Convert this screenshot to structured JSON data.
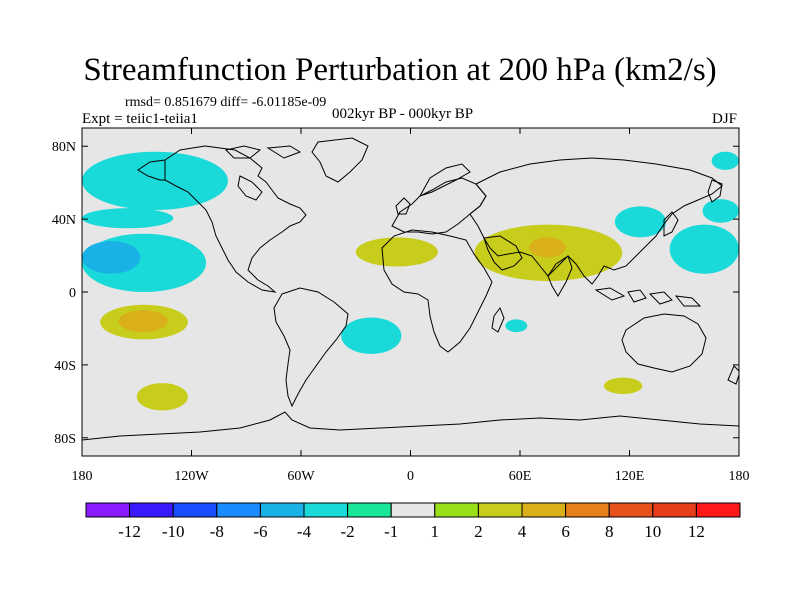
{
  "header": {
    "title": "Streamfunction Perturbation at 200 hPa (km2/s)",
    "stats": "rmsd= 0.851679 diff= -6.01185e-09",
    "experiment": "Expt = teiic1-teiia1",
    "period": "002kyr BP - 000kyr BP",
    "season": "DJF"
  },
  "map": {
    "lon_range": [
      -180,
      180
    ],
    "lat_range": [
      -90,
      90
    ],
    "background": "#e6e6e6",
    "coastline_color": "#000000",
    "x_ticks": [
      {
        "lon": -180,
        "label": "180"
      },
      {
        "lon": -120,
        "label": "120W"
      },
      {
        "lon": -60,
        "label": "60W"
      },
      {
        "lon": 0,
        "label": "0"
      },
      {
        "lon": 60,
        "label": "60E"
      },
      {
        "lon": 120,
        "label": "120E"
      },
      {
        "lon": 180,
        "label": "180"
      }
    ],
    "y_ticks": [
      {
        "lat": 80,
        "label": "80N"
      },
      {
        "lat": 40,
        "label": "40N"
      },
      {
        "lat": 0,
        "label": "0"
      },
      {
        "lat": -40,
        "label": "40S"
      },
      {
        "lat": -80,
        "label": "80S"
      }
    ],
    "regions": [
      {
        "name": "north-pacific-jet-negative",
        "level": -2,
        "lon": [
          -180,
          -100
        ],
        "lat": [
          45,
          77
        ]
      },
      {
        "name": "subtropical-north-pacific-negative",
        "level": -2,
        "lon": [
          -180,
          -130
        ],
        "lat": [
          35,
          46
        ]
      },
      {
        "name": "tropical-pacific-negative",
        "level": -2,
        "lon": [
          -180,
          -112
        ],
        "lat": [
          0,
          32
        ]
      },
      {
        "name": "tropical-pacific-core-negative",
        "level": -4,
        "lon": [
          -180,
          -148
        ],
        "lat": [
          10,
          28
        ]
      },
      {
        "name": "south-pacific-positive",
        "level": 2,
        "lon": [
          -170,
          -122
        ],
        "lat": [
          -26,
          -7
        ]
      },
      {
        "name": "south-pacific-core-positive",
        "level": 4,
        "lon": [
          -160,
          -133
        ],
        "lat": [
          -22,
          -10
        ]
      },
      {
        "name": "south-pacific-high-lat-positive",
        "level": 2,
        "lon": [
          -150,
          -122
        ],
        "lat": [
          -65,
          -50
        ]
      },
      {
        "name": "south-atlantic-negative",
        "level": -2,
        "lon": [
          -38,
          -5
        ],
        "lat": [
          -34,
          -14
        ]
      },
      {
        "name": "north-africa-positive",
        "level": 2,
        "lon": [
          -30,
          15
        ],
        "lat": [
          14,
          30
        ]
      },
      {
        "name": "south-asia-positive",
        "level": 2,
        "lon": [
          35,
          116
        ],
        "lat": [
          6,
          37
        ]
      },
      {
        "name": "arabian-core-positive",
        "level": 4,
        "lon": [
          65,
          85
        ],
        "lat": [
          19,
          30
        ]
      },
      {
        "name": "east-asia-negative",
        "level": -2,
        "lon": [
          112,
          140
        ],
        "lat": [
          30,
          47
        ]
      },
      {
        "name": "west-pacific-negative",
        "level": -2,
        "lon": [
          142,
          180
        ],
        "lat": [
          10,
          37
        ]
      },
      {
        "name": "north-pacific-west-negative",
        "level": -2,
        "lon": [
          160,
          180
        ],
        "lat": [
          38,
          51
        ]
      },
      {
        "name": "arctic-pacific-negative",
        "level": -2,
        "lon": [
          165,
          180
        ],
        "lat": [
          67,
          77
        ]
      },
      {
        "name": "indian-ocean-negative",
        "level": -2,
        "lon": [
          52,
          64
        ],
        "lat": [
          -22,
          -15
        ]
      },
      {
        "name": "south-indian-positive",
        "level": 2,
        "lon": [
          106,
          127
        ],
        "lat": [
          -56,
          -47
        ]
      }
    ]
  },
  "colorbar": {
    "labels": [
      "-12",
      "-10",
      "-8",
      "-6",
      "-4",
      "-2",
      "-1",
      "1",
      "2",
      "4",
      "6",
      "8",
      "10",
      "12"
    ],
    "colors": [
      "#8c1aff",
      "#3a1aff",
      "#1a4dff",
      "#1a8cff",
      "#1ab2e6",
      "#1ad9d9",
      "#1ae699",
      "#e6e6e6",
      "#99e01a",
      "#c8cc1a",
      "#d9b01a",
      "#e6801a",
      "#e6521a",
      "#e63d1a",
      "#ff1a1a"
    ]
  }
}
